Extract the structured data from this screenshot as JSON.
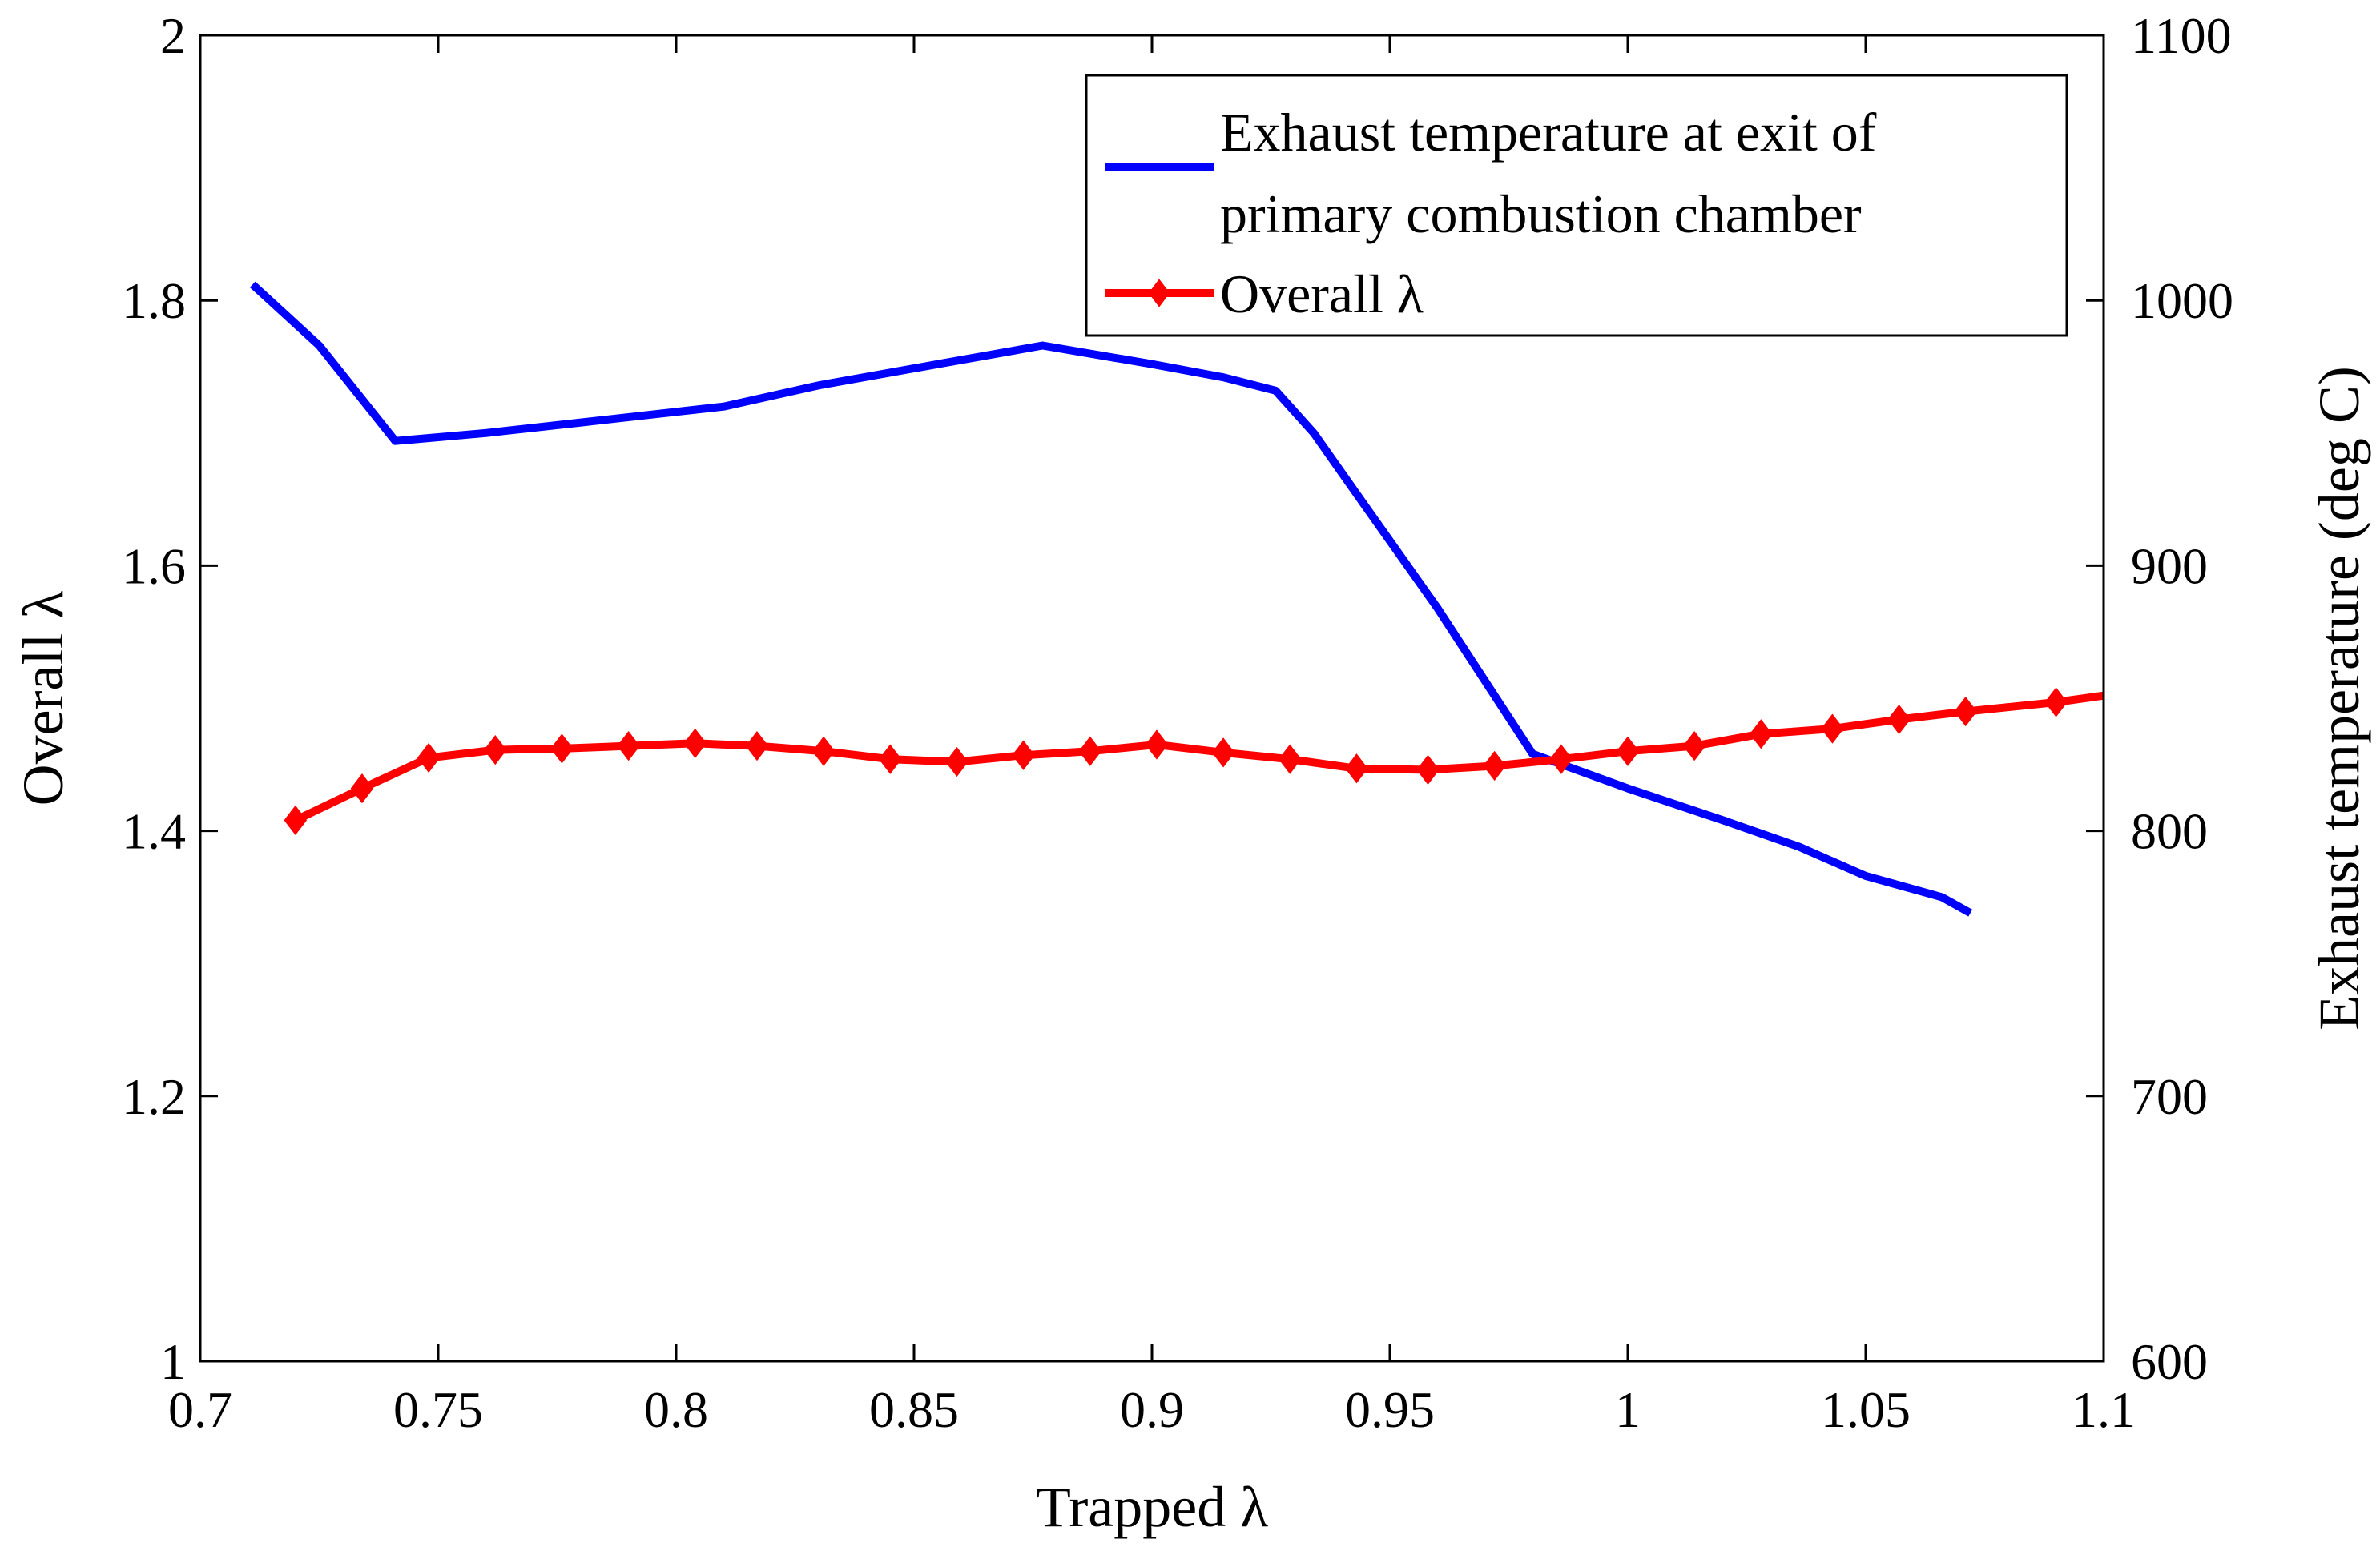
{
  "chart_data": {
    "type": "line",
    "title": "",
    "xlabel": "Trapped λ",
    "ylabel_left": "Overall λ",
    "ylabel_right": "Exhaust temperature (deg C)",
    "xlim": [
      0.7,
      1.1
    ],
    "ylim_left": [
      1,
      2
    ],
    "ylim_right": [
      600,
      1100
    ],
    "x_ticks": [
      0.7,
      0.75,
      0.8,
      0.85,
      0.9,
      0.95,
      1.0,
      1.05,
      1.1
    ],
    "x_tick_labels": [
      "0.7",
      "0.75",
      "0.8",
      "0.85",
      "0.9",
      "0.95",
      "1",
      "1.05",
      "1.1"
    ],
    "y_left_ticks": [
      1,
      1.2,
      1.4,
      1.6,
      1.8,
      2
    ],
    "y_left_tick_labels": [
      "1",
      "1.2",
      "1.4",
      "1.6",
      "1.8",
      "2"
    ],
    "y_right_ticks": [
      600,
      700,
      800,
      900,
      1000,
      1100
    ],
    "y_right_tick_labels": [
      "600",
      "700",
      "800",
      "900",
      "1000",
      "1100"
    ],
    "grid": false,
    "legend_position": "top-right",
    "series": [
      {
        "name": "Exhaust temperature at exit of primary combustion chamber",
        "legend_lines": [
          "Exhaust temperature at exit of",
          "primary combustion chamber"
        ],
        "axis": "right",
        "color": "#0000ff",
        "marker": "none",
        "x": [
          0.711,
          0.725,
          0.741,
          0.76,
          0.78,
          0.8,
          0.81,
          0.83,
          0.855,
          0.877,
          0.9,
          0.915,
          0.926,
          0.934,
          0.945,
          0.96,
          0.98,
          1.0,
          1.02,
          1.036,
          1.05,
          1.066,
          1.072
        ],
        "y": [
          1006,
          983,
          947,
          950,
          954,
          958,
          960,
          968,
          976,
          983,
          976,
          971,
          966,
          950,
          922,
          884,
          829,
          816,
          804,
          794,
          783,
          775,
          769
        ]
      },
      {
        "name": "Overall λ",
        "legend_lines": [
          "Overall λ"
        ],
        "axis": "left",
        "color": "#ff0000",
        "marker": "diamond",
        "x": [
          0.72,
          0.734,
          0.748,
          0.762,
          0.776,
          0.79,
          0.804,
          0.817,
          0.831,
          0.845,
          0.859,
          0.873,
          0.887,
          0.901,
          0.915,
          0.929,
          0.943,
          0.958,
          0.972,
          0.986,
          1.0,
          1.014,
          1.028,
          1.043,
          1.057,
          1.071,
          1.09,
          1.1
        ],
        "y": [
          1.408,
          1.432,
          1.455,
          1.461,
          1.462,
          1.464,
          1.466,
          1.464,
          1.46,
          1.454,
          1.452,
          1.457,
          1.46,
          1.465,
          1.459,
          1.454,
          1.447,
          1.446,
          1.449,
          1.454,
          1.46,
          1.464,
          1.473,
          1.477,
          1.484,
          1.49,
          1.497,
          1.502
        ]
      }
    ]
  }
}
